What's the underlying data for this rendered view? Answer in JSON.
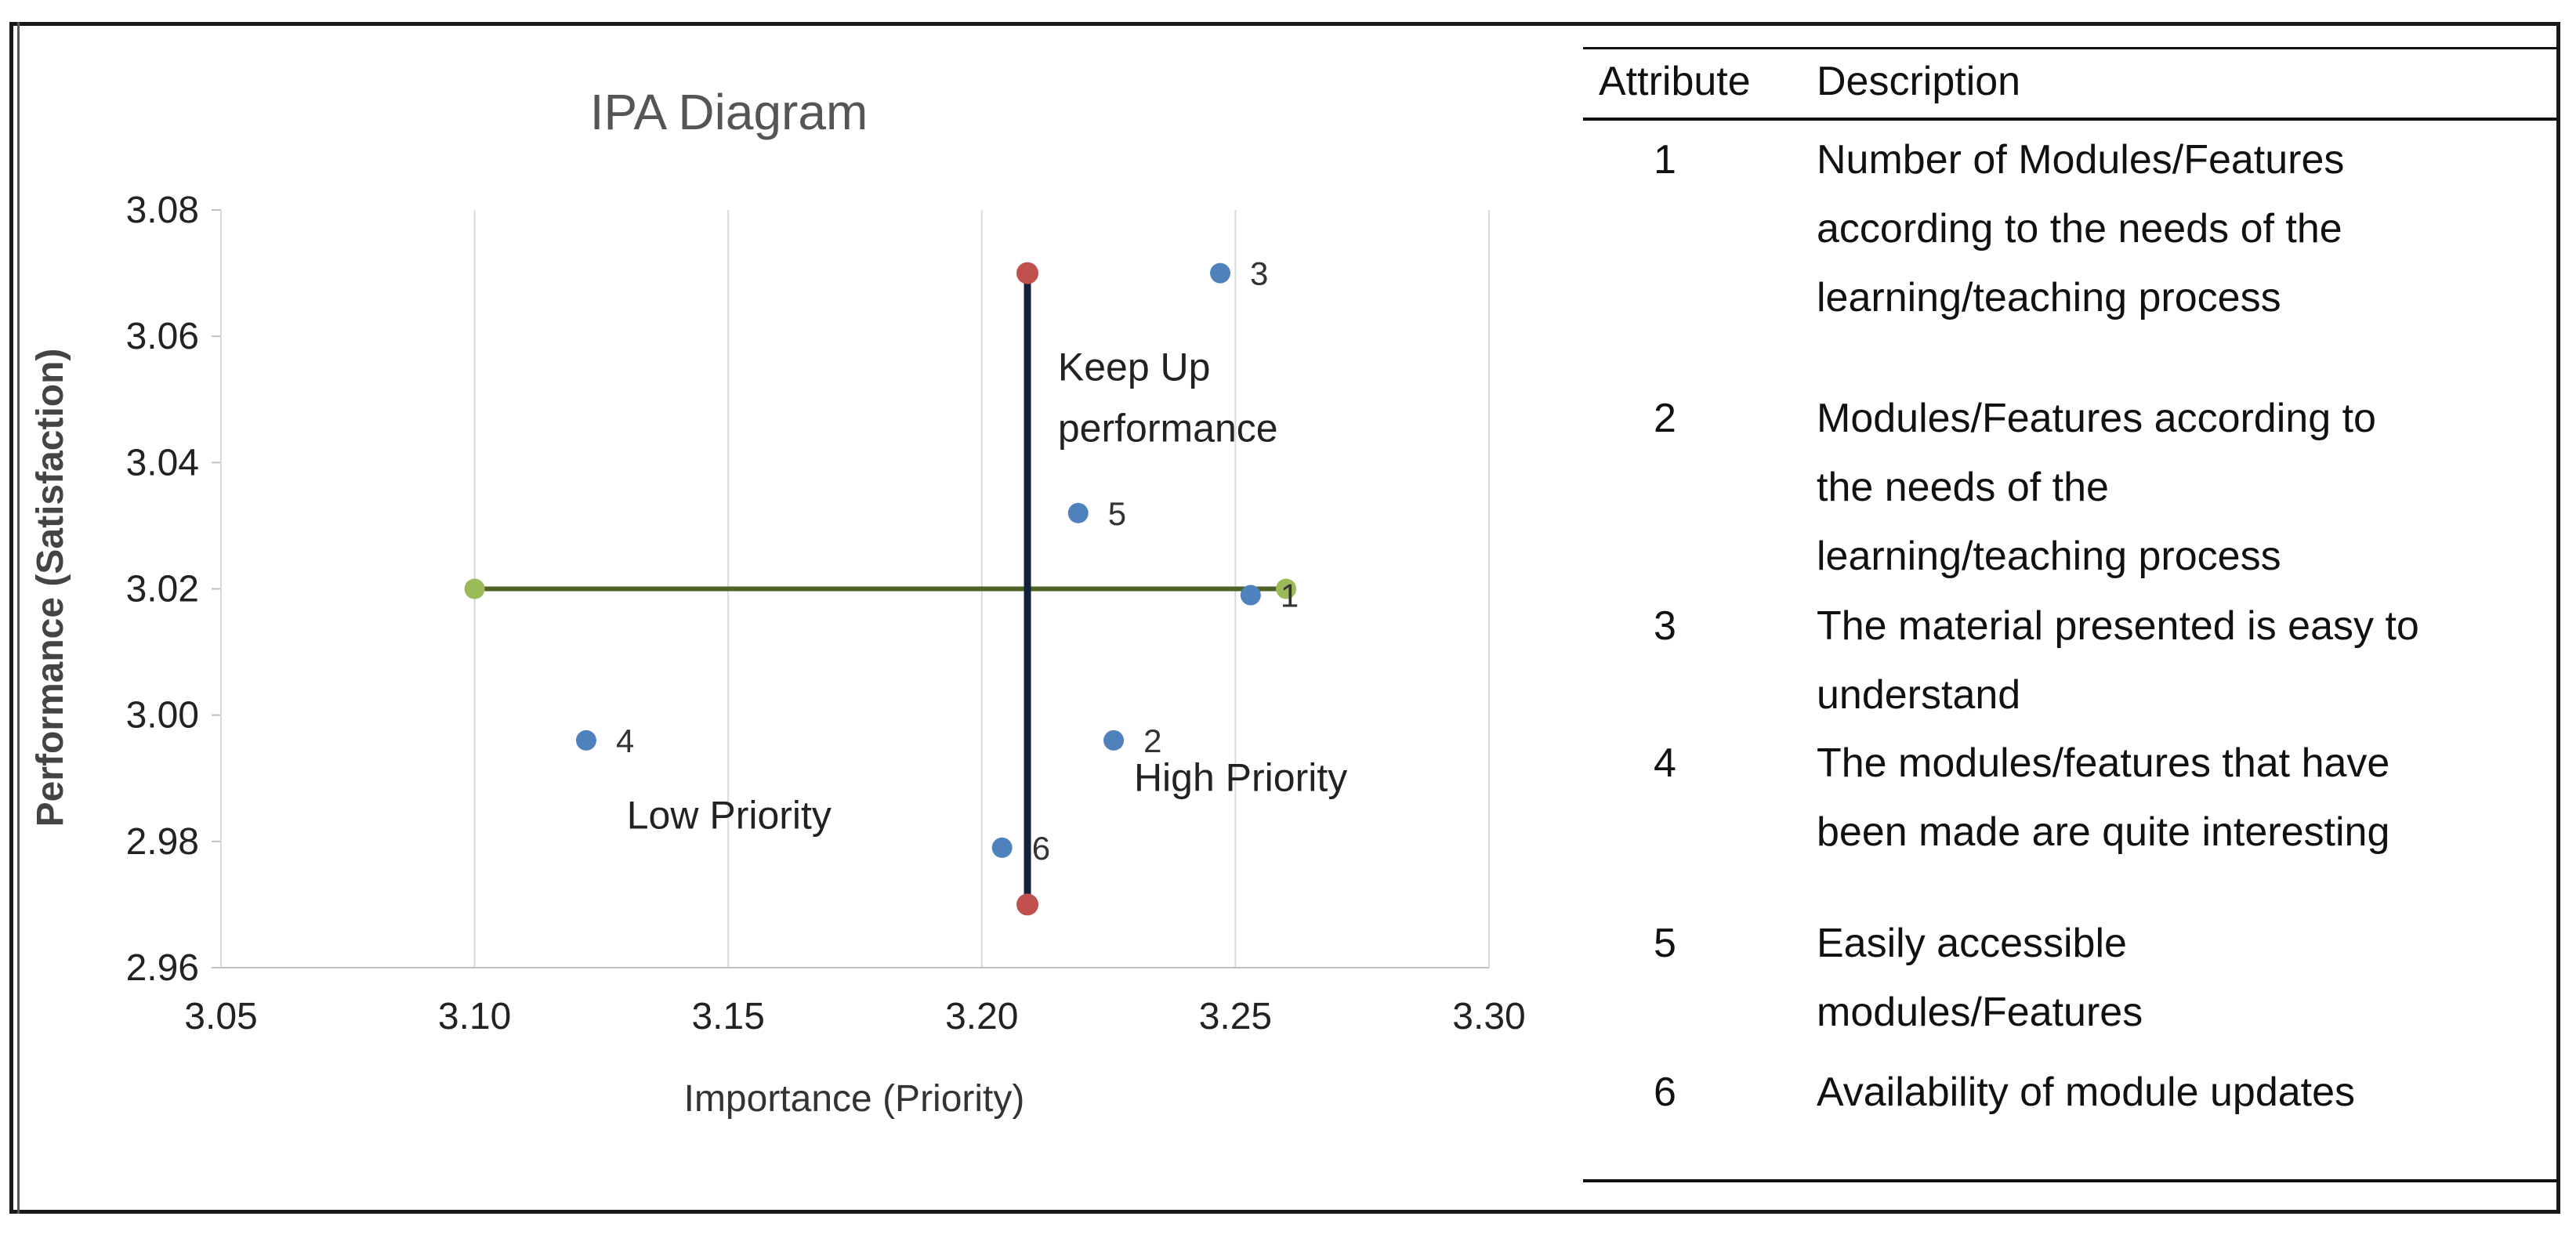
{
  "chart_data": {
    "type": "scatter",
    "title": "IPA Diagram",
    "xlabel": "Importance (Priority)",
    "ylabel": "Performance (Satisfaction)",
    "xlim": [
      3.05,
      3.3
    ],
    "ylim": [
      2.96,
      3.08
    ],
    "x_ticks": [
      "3.05",
      "3.10",
      "3.15",
      "3.20",
      "3.25",
      "3.30"
    ],
    "y_ticks": [
      "3.08",
      "3.06",
      "3.04",
      "3.02",
      "3.00",
      "2.98",
      "2.96"
    ],
    "grid": "vertical",
    "points": [
      {
        "label": "1",
        "x": 3.253,
        "y": 3.019
      },
      {
        "label": "2",
        "x": 3.226,
        "y": 2.996
      },
      {
        "label": "3",
        "x": 3.247,
        "y": 3.07
      },
      {
        "label": "4",
        "x": 3.122,
        "y": 2.996
      },
      {
        "label": "5",
        "x": 3.219,
        "y": 3.032
      },
      {
        "label": "6",
        "x": 3.204,
        "y": 2.979
      }
    ],
    "vertical_line": {
      "x": 3.209,
      "y_start": 2.97,
      "y_end": 3.07,
      "color": "#14213d",
      "endpoint_color": "#c0504d"
    },
    "horizontal_line": {
      "y": 3.02,
      "x_start": 3.1,
      "x_end": 3.26,
      "color": "#4f6228",
      "endpoint_color": "#9bbb59"
    },
    "point_color": "#4f81bd",
    "quadrant_labels": [
      {
        "lines": [
          "Keep Up",
          "performance"
        ],
        "x": 3.215,
        "y": 3.053
      },
      {
        "lines": [
          "High Priority"
        ],
        "x": 3.23,
        "y": 2.988
      },
      {
        "lines": [
          "Low Priority"
        ],
        "x": 3.13,
        "y": 2.982
      }
    ]
  },
  "table": {
    "headers": [
      "Attribute",
      "Description"
    ],
    "rows": [
      {
        "attribute": "1",
        "description": [
          "Number of Modules/Features",
          "according to the needs of the",
          "learning/teaching process"
        ]
      },
      {
        "attribute": "2",
        "description": [
          "Modules/Features according to",
          "the needs of the",
          "learning/teaching process"
        ]
      },
      {
        "attribute": "3",
        "description": [
          "The material presented is easy to",
          "understand"
        ]
      },
      {
        "attribute": "4",
        "description": [
          "The modules/features that have",
          "been made are quite interesting"
        ]
      },
      {
        "attribute": "5",
        "description": [
          "Easily accessible",
          "modules/Features"
        ]
      },
      {
        "attribute": "6",
        "description": [
          "Availability of module updates"
        ]
      }
    ]
  }
}
